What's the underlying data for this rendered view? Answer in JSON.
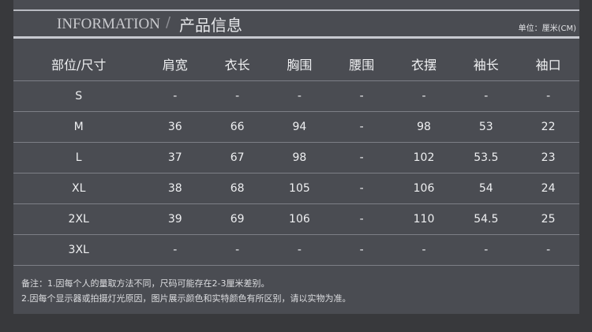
{
  "header": {
    "title_en": "INFORMATION",
    "separator": "/",
    "title_cn": "产品信息",
    "unit": "单位：厘米(CM)"
  },
  "table": {
    "columns": [
      "部位/尺寸",
      "肩宽",
      "衣长",
      "胸围",
      "腰围",
      "衣摆",
      "袖长",
      "袖口"
    ],
    "rows": [
      [
        "S",
        "-",
        "-",
        "-",
        "-",
        "-",
        "-",
        "-"
      ],
      [
        "M",
        "36",
        "66",
        "94",
        "-",
        "98",
        "53",
        "22"
      ],
      [
        "L",
        "37",
        "67",
        "98",
        "-",
        "102",
        "53.5",
        "23"
      ],
      [
        "XL",
        "38",
        "68",
        "105",
        "-",
        "106",
        "54",
        "24"
      ],
      [
        "2XL",
        "39",
        "69",
        "106",
        "-",
        "110",
        "54.5",
        "25"
      ],
      [
        "3XL",
        "-",
        "-",
        "-",
        "-",
        "-",
        "-",
        "-"
      ]
    ]
  },
  "notes": [
    "备注：1.因每个人的量取方法不同，尺码可能存在2-3厘米差别。",
    "2.因每个显示器或拍摄灯光原因，图片展示颜色和实特颜色有所区别，请以实物为准。"
  ]
}
